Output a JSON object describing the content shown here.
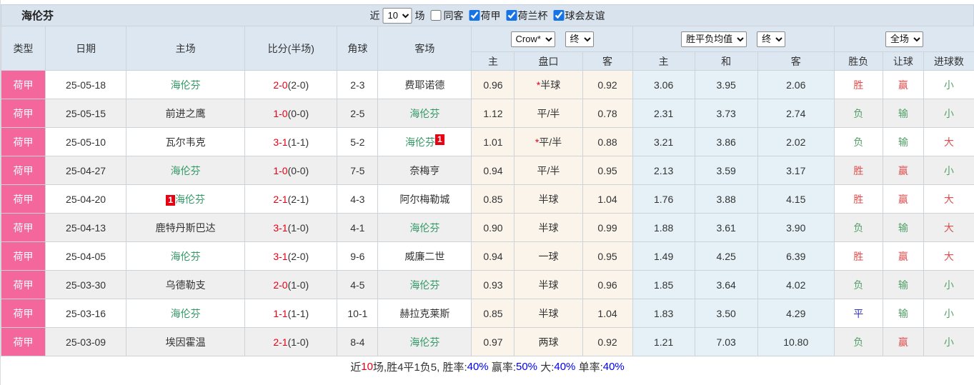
{
  "title": "海伦芬",
  "filter_bar": {
    "near_label": "近",
    "games_select": "10",
    "games_label": "场",
    "checkboxes": [
      {
        "label": "同客",
        "checked": false
      },
      {
        "label": "荷甲",
        "checked": true
      },
      {
        "label": "荷兰杯",
        "checked": true
      },
      {
        "label": "球会友谊",
        "checked": true
      }
    ]
  },
  "colors": {
    "league_pink": "#f4679d",
    "team_green": "#339966",
    "score_red": "#e60012",
    "result_red": "#e04f4f",
    "result_green": "#55a06a",
    "result_blue": "#3333cc",
    "summary_blue": "#0000ee",
    "header_bg": "#dde7f1",
    "crow_col_bg": "#faf4eb",
    "avg_col_bg": "#e6f0f7"
  },
  "table": {
    "main_headers": [
      "类型",
      "日期",
      "主场",
      "比分(半场)",
      "角球",
      "客场"
    ],
    "sub_headers": [
      "主",
      "盘口",
      "客",
      "主",
      "和",
      "客",
      "胜负",
      "让球",
      "进球数"
    ],
    "selects": {
      "company": "Crow*",
      "company_final": "终",
      "avg": "胜平负均值",
      "avg_final": "终",
      "scope": "全场"
    },
    "rows": [
      {
        "league": "荷甲",
        "date": "25-05-18",
        "home": "海伦芬",
        "home_team": true,
        "home_badge": "",
        "ft": "2-0",
        "ht": "(2-0)",
        "corner": "2-3",
        "away": "费耶诺德",
        "away_team": false,
        "away_badge": "",
        "crow_home": "0.96",
        "pan_star": true,
        "pan": "半球",
        "crow_away": "0.92",
        "avg_home": "3.06",
        "avg_draw": "3.95",
        "avg_away": "2.06",
        "wdl": "胜",
        "wdl_c": "red",
        "pan_res": "赢",
        "pan_res_c": "red",
        "goal": "小",
        "goal_c": "green"
      },
      {
        "league": "荷甲",
        "date": "25-05-15",
        "home": "前进之鹰",
        "home_team": false,
        "home_badge": "",
        "ft": "1-0",
        "ht": "(0-0)",
        "corner": "2-5",
        "away": "海伦芬",
        "away_team": true,
        "away_badge": "",
        "crow_home": "1.12",
        "pan_star": false,
        "pan": "平/半",
        "crow_away": "0.78",
        "avg_home": "2.31",
        "avg_draw": "3.73",
        "avg_away": "2.74",
        "wdl": "负",
        "wdl_c": "green",
        "pan_res": "输",
        "pan_res_c": "green",
        "goal": "小",
        "goal_c": "green"
      },
      {
        "league": "荷甲",
        "date": "25-05-10",
        "home": "瓦尔韦克",
        "home_team": false,
        "home_badge": "",
        "ft": "3-1",
        "ht": "(1-1)",
        "corner": "5-2",
        "away": "海伦芬",
        "away_team": true,
        "away_badge": "1",
        "crow_home": "1.01",
        "pan_star": true,
        "pan": "平/半",
        "crow_away": "0.88",
        "avg_home": "3.21",
        "avg_draw": "3.86",
        "avg_away": "2.02",
        "wdl": "负",
        "wdl_c": "green",
        "pan_res": "输",
        "pan_res_c": "green",
        "goal": "大",
        "goal_c": "red"
      },
      {
        "league": "荷甲",
        "date": "25-04-27",
        "home": "海伦芬",
        "home_team": true,
        "home_badge": "",
        "ft": "1-0",
        "ht": "(0-0)",
        "corner": "7-5",
        "away": "奈梅亨",
        "away_team": false,
        "away_badge": "",
        "crow_home": "0.94",
        "pan_star": false,
        "pan": "平/半",
        "crow_away": "0.95",
        "avg_home": "2.13",
        "avg_draw": "3.59",
        "avg_away": "3.17",
        "wdl": "胜",
        "wdl_c": "red",
        "pan_res": "赢",
        "pan_res_c": "red",
        "goal": "小",
        "goal_c": "green"
      },
      {
        "league": "荷甲",
        "date": "25-04-20",
        "home": "海伦芬",
        "home_team": true,
        "home_badge": "1",
        "ft": "2-1",
        "ht": "(2-1)",
        "corner": "4-3",
        "away": "阿尔梅勒城",
        "away_team": false,
        "away_badge": "",
        "crow_home": "0.85",
        "pan_star": false,
        "pan": "半球",
        "crow_away": "1.04",
        "avg_home": "1.76",
        "avg_draw": "3.88",
        "avg_away": "4.15",
        "wdl": "胜",
        "wdl_c": "red",
        "pan_res": "赢",
        "pan_res_c": "red",
        "goal": "大",
        "goal_c": "red"
      },
      {
        "league": "荷甲",
        "date": "25-04-13",
        "home": "鹿特丹斯巴达",
        "home_team": false,
        "home_badge": "",
        "ft": "3-1",
        "ht": "(1-0)",
        "corner": "4-1",
        "away": "海伦芬",
        "away_team": true,
        "away_badge": "",
        "crow_home": "0.90",
        "pan_star": false,
        "pan": "半球",
        "crow_away": "0.99",
        "avg_home": "1.88",
        "avg_draw": "3.61",
        "avg_away": "3.90",
        "wdl": "负",
        "wdl_c": "green",
        "pan_res": "输",
        "pan_res_c": "green",
        "goal": "大",
        "goal_c": "red"
      },
      {
        "league": "荷甲",
        "date": "25-04-05",
        "home": "海伦芬",
        "home_team": true,
        "home_badge": "",
        "ft": "3-1",
        "ht": "(2-0)",
        "corner": "9-6",
        "away": "威廉二世",
        "away_team": false,
        "away_badge": "",
        "crow_home": "0.94",
        "pan_star": false,
        "pan": "一球",
        "crow_away": "0.95",
        "avg_home": "1.49",
        "avg_draw": "4.25",
        "avg_away": "6.39",
        "wdl": "胜",
        "wdl_c": "red",
        "pan_res": "赢",
        "pan_res_c": "red",
        "goal": "大",
        "goal_c": "red"
      },
      {
        "league": "荷甲",
        "date": "25-03-30",
        "home": "乌德勒支",
        "home_team": false,
        "home_badge": "",
        "ft": "2-0",
        "ht": "(1-0)",
        "corner": "4-5",
        "away": "海伦芬",
        "away_team": true,
        "away_badge": "",
        "crow_home": "0.93",
        "pan_star": false,
        "pan": "半球",
        "crow_away": "0.96",
        "avg_home": "1.85",
        "avg_draw": "3.64",
        "avg_away": "4.02",
        "wdl": "负",
        "wdl_c": "green",
        "pan_res": "输",
        "pan_res_c": "green",
        "goal": "小",
        "goal_c": "green"
      },
      {
        "league": "荷甲",
        "date": "25-03-16",
        "home": "海伦芬",
        "home_team": true,
        "home_badge": "",
        "ft": "1-1",
        "ht": "(1-1)",
        "corner": "10-1",
        "away": "赫拉克莱斯",
        "away_team": false,
        "away_badge": "",
        "crow_home": "0.85",
        "pan_star": false,
        "pan": "半球",
        "crow_away": "1.04",
        "avg_home": "1.83",
        "avg_draw": "3.50",
        "avg_away": "4.29",
        "wdl": "平",
        "wdl_c": "blue",
        "pan_res": "输",
        "pan_res_c": "green",
        "goal": "小",
        "goal_c": "green"
      },
      {
        "league": "荷甲",
        "date": "25-03-09",
        "home": "埃因霍温",
        "home_team": false,
        "home_badge": "",
        "ft": "2-1",
        "ht": "(1-0)",
        "corner": "8-4",
        "away": "海伦芬",
        "away_team": true,
        "away_badge": "",
        "crow_home": "0.97",
        "pan_star": false,
        "pan": "两球",
        "crow_away": "0.92",
        "avg_home": "1.21",
        "avg_draw": "7.03",
        "avg_away": "10.80",
        "wdl": "负",
        "wdl_c": "green",
        "pan_res": "赢",
        "pan_res_c": "red",
        "goal": "小",
        "goal_c": "green"
      }
    ]
  },
  "summary": {
    "segments": [
      {
        "t": "近",
        "c": "dark"
      },
      {
        "t": "10",
        "c": "red"
      },
      {
        "t": "场,胜4平1负5, 胜率:",
        "c": "dark"
      },
      {
        "t": "40%",
        "c": "blue"
      },
      {
        "t": " 赢率:",
        "c": "dark"
      },
      {
        "t": "50%",
        "c": "blue"
      },
      {
        "t": " 大:",
        "c": "dark"
      },
      {
        "t": "40%",
        "c": "blue"
      },
      {
        "t": " 单率:",
        "c": "dark"
      },
      {
        "t": "40%",
        "c": "blue"
      }
    ]
  }
}
